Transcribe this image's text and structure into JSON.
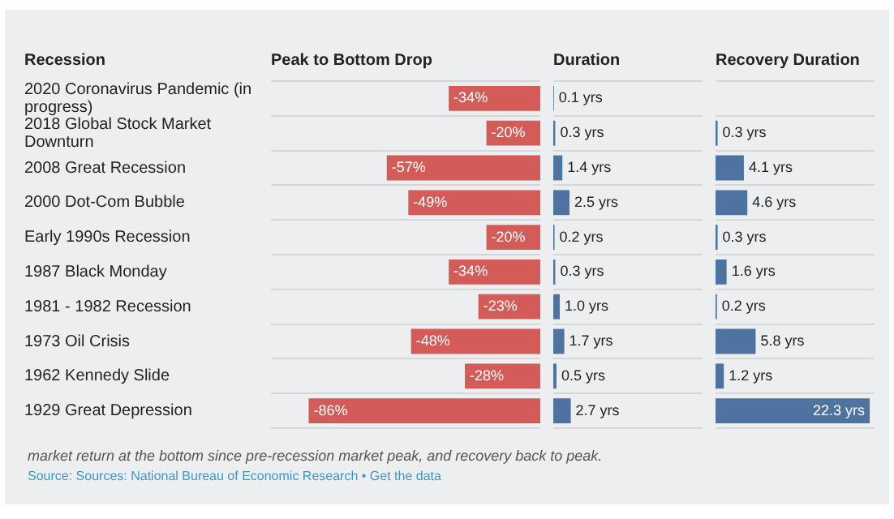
{
  "chart_data": [
    {
      "type": "bar",
      "orientation": "horizontal",
      "title": "Peak to Bottom Drop",
      "ylabel": "Recession",
      "categories": [
        "2020 Coronavirus Pandemic (in progress)",
        "2018 Global Stock Market Downturn",
        "2008 Great Recession",
        "2000 Dot-Com Bubble",
        "Early 1990s Recession",
        "1987 Black Monday",
        "1981 - 1982 Recession",
        "1973 Oil Crisis",
        "1962 Kennedy Slide",
        "1929 Great Depression"
      ],
      "values": [
        -34,
        -20,
        -57,
        -49,
        -20,
        -34,
        -23,
        -48,
        -28,
        -86
      ],
      "color": "#d35b58",
      "value_labels": [
        "-34%",
        "-20%",
        "-57%",
        "-49%",
        "-20%",
        "-34%",
        "-23%",
        "-48%",
        "-28%",
        "-86%"
      ],
      "xlim": [
        -100,
        0
      ],
      "tick_labels": "y",
      "grid": "y",
      "legend": false,
      "annotations": [
        "market return at the bottom since pre-recession market peak, and recovery back to peak.",
        "Source: Sources: National Bureau of Economic Research • Get the data"
      ]
    },
    {
      "type": "bar",
      "orientation": "horizontal",
      "title": "Duration",
      "categories": [
        null,
        null,
        null,
        null,
        null,
        null,
        null,
        null,
        null,
        null
      ],
      "values": [
        0.1,
        0.3,
        1.4,
        2.5,
        0.2,
        0.3,
        1.0,
        1.7,
        0.5,
        2.7
      ],
      "color": "#4f73a1",
      "value_labels": [
        "0.1 yrs",
        "0.3 yrs",
        "1.4 yrs",
        "2.5 yrs",
        "0.2 yrs",
        "0.3 yrs",
        "1.0 yrs",
        "1.7 yrs",
        "0.5 yrs",
        "2.7 yrs"
      ],
      "xlim": [
        0,
        23
      ],
      "tick_labels": false,
      "grid": "y",
      "legend": false
    },
    {
      "type": "bar",
      "orientation": "horizontal",
      "title": "Recovery Duration",
      "categories": [
        null,
        null,
        null,
        null,
        null,
        null,
        null,
        null,
        null,
        null
      ],
      "values": [
        null,
        0.3,
        4.1,
        4.6,
        0.3,
        1.6,
        0.2,
        5.8,
        1.2,
        22.3
      ],
      "color": "#4f73a1",
      "value_labels": [
        null,
        "0.3 yrs",
        "4.1 yrs",
        "4.6 yrs",
        "0.3 yrs",
        "1.6 yrs",
        "0.2 yrs",
        "5.8 yrs",
        "1.2 yrs",
        "22.3 yrs"
      ],
      "xlim": [
        0,
        23
      ],
      "tick_labels": false,
      "grid": "y",
      "legend": false
    }
  ]
}
